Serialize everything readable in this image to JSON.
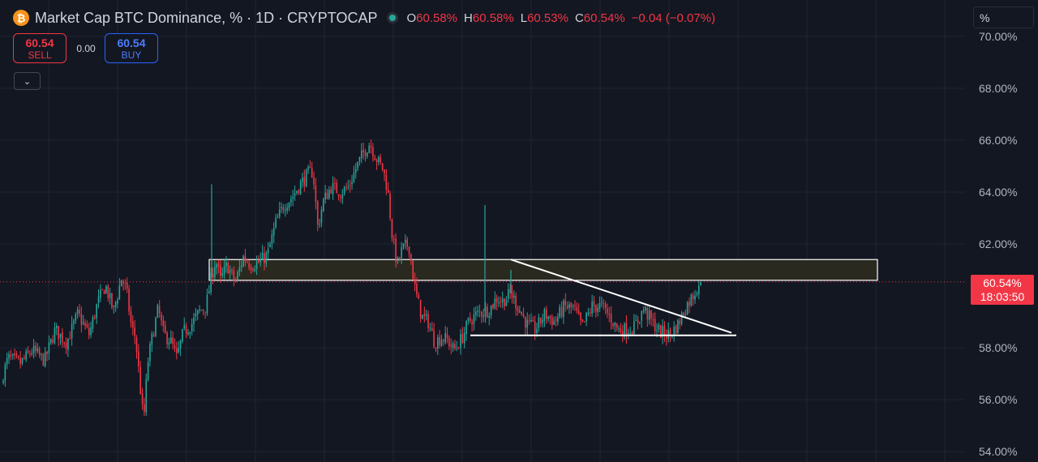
{
  "header": {
    "coin_glyph": "₿",
    "title": "Market Cap BTC Dominance, % · 1D · CRYPTOCAP",
    "ohlc": [
      {
        "key": "O",
        "value": "60.58%"
      },
      {
        "key": "H",
        "value": "60.58%"
      },
      {
        "key": "L",
        "value": "60.53%"
      },
      {
        "key": "C",
        "value": "60.54%"
      }
    ],
    "change": "−0.04 (−0.07%)"
  },
  "trade": {
    "sell_price": "60.54",
    "sell_label": "SELL",
    "spread": "0.00",
    "buy_price": "60.54",
    "buy_label": "BUY"
  },
  "toolbar": {
    "collapse_glyph": "⌄",
    "scale_mode": "%"
  },
  "price_tag": {
    "price": "60.54%",
    "countdown": "18:03:50"
  },
  "colors": {
    "background": "#131722",
    "grid": "#1f2433",
    "up": "#26a69a",
    "down": "#f23645",
    "drawing": "#ffffff",
    "zone_fill": "#2b2a21",
    "axis_text": "#b2b5be"
  },
  "chart_data": {
    "type": "candlestick",
    "ylabel": "",
    "ylim": [
      53.6,
      71.4
    ],
    "yticks": [
      "70.00%",
      "68.00%",
      "66.00%",
      "64.00%",
      "62.00%",
      "58.00%",
      "56.00%",
      "54.00%"
    ],
    "current_price": 60.54,
    "grid": true,
    "price_path": [
      [
        0,
        56.6
      ],
      [
        10,
        57.6
      ],
      [
        25,
        57.4
      ],
      [
        40,
        57.9
      ],
      [
        55,
        57.5
      ],
      [
        68,
        58.7
      ],
      [
        82,
        58.2
      ],
      [
        96,
        59.3
      ],
      [
        110,
        58.5
      ],
      [
        120,
        59.7
      ],
      [
        130,
        60.4
      ],
      [
        140,
        59.4
      ],
      [
        150,
        60.7
      ],
      [
        156,
        60.2
      ],
      [
        162,
        58.8
      ],
      [
        167,
        58.4
      ],
      [
        172,
        56.8
      ],
      [
        177,
        55.1
      ],
      [
        182,
        57.4
      ],
      [
        187,
        58.3
      ],
      [
        195,
        59.5
      ],
      [
        202,
        58.5
      ],
      [
        210,
        58.3
      ],
      [
        218,
        57.6
      ],
      [
        226,
        58.6
      ],
      [
        236,
        58.9
      ],
      [
        246,
        59.4
      ],
      [
        254,
        59.6
      ],
      [
        260,
        60.6
      ],
      [
        266,
        61.4
      ],
      [
        272,
        60.6
      ],
      [
        280,
        61.2
      ],
      [
        290,
        60.5
      ],
      [
        300,
        61.5
      ],
      [
        310,
        61.2
      ],
      [
        320,
        61.3
      ],
      [
        330,
        61.6
      ],
      [
        340,
        62.8
      ],
      [
        350,
        63.5
      ],
      [
        360,
        63.8
      ],
      [
        370,
        64.3
      ],
      [
        380,
        64.7
      ],
      [
        386,
        64.8
      ],
      [
        392,
        62.6
      ],
      [
        398,
        63.6
      ],
      [
        408,
        64.2
      ],
      [
        420,
        64.0
      ],
      [
        430,
        64.2
      ],
      [
        440,
        65.0
      ],
      [
        448,
        65.5
      ],
      [
        456,
        65.9
      ],
      [
        464,
        65.3
      ],
      [
        472,
        64.9
      ],
      [
        478,
        64.1
      ],
      [
        484,
        62.2
      ],
      [
        490,
        61.2
      ],
      [
        496,
        61.8
      ],
      [
        504,
        62.0
      ],
      [
        512,
        60.2
      ],
      [
        520,
        59.2
      ],
      [
        528,
        59.0
      ],
      [
        536,
        58.2
      ],
      [
        544,
        58.4
      ],
      [
        552,
        58.3
      ],
      [
        560,
        57.9
      ],
      [
        570,
        58.4
      ],
      [
        578,
        59.0
      ],
      [
        588,
        59.3
      ],
      [
        596,
        59.4
      ],
      [
        604,
        59.5
      ],
      [
        612,
        59.9
      ],
      [
        620,
        59.8
      ],
      [
        630,
        60.1
      ],
      [
        640,
        59.5
      ],
      [
        650,
        58.9
      ],
      [
        660,
        58.7
      ],
      [
        672,
        59.3
      ],
      [
        684,
        59.0
      ],
      [
        696,
        59.6
      ],
      [
        708,
        59.5
      ],
      [
        718,
        58.8
      ],
      [
        730,
        59.6
      ],
      [
        742,
        59.6
      ],
      [
        752,
        59.2
      ],
      [
        762,
        58.7
      ],
      [
        772,
        58.7
      ],
      [
        782,
        58.8
      ],
      [
        794,
        59.5
      ],
      [
        804,
        59.0
      ],
      [
        814,
        58.6
      ],
      [
        826,
        58.5
      ],
      [
        836,
        58.9
      ],
      [
        846,
        59.6
      ],
      [
        856,
        60.1
      ],
      [
        862,
        60.5
      ],
      [
        866,
        60.54
      ]
    ],
    "spikes": [
      {
        "x": 261,
        "high": 64.3
      },
      {
        "x": 598,
        "high": 63.5
      },
      {
        "x": 630,
        "high": 61.0
      }
    ],
    "annotations": {
      "zone": {
        "x_start": 258,
        "x_end": 1082,
        "high": 61.4,
        "low": 60.6
      },
      "descending_trendline": [
        [
          630,
          61.4
        ],
        [
          902,
          58.58
        ]
      ],
      "support_line": [
        [
          580,
          58.48
        ],
        [
          908,
          58.48
        ]
      ]
    }
  }
}
